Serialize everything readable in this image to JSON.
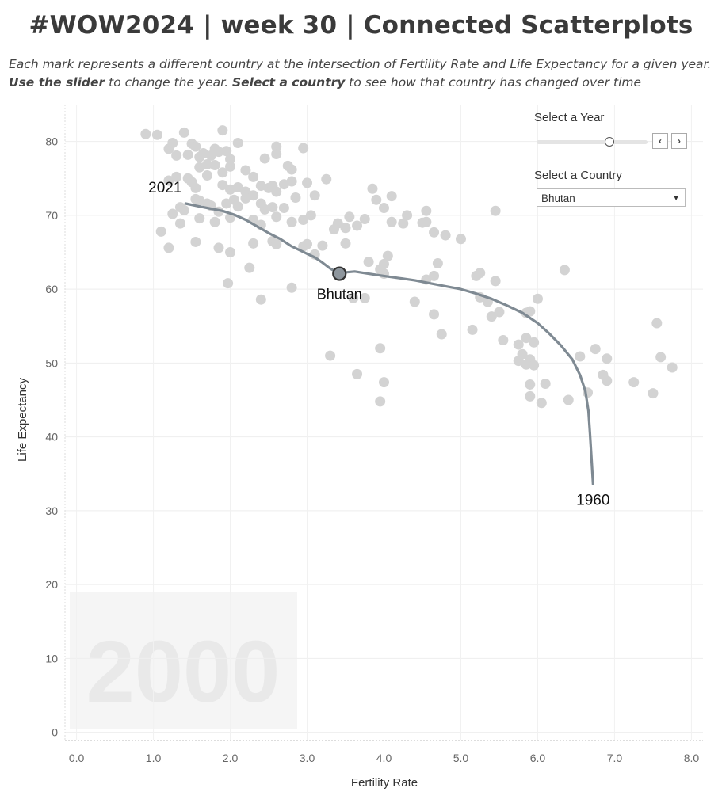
{
  "header": {
    "title": "#WOW2024 | week 30 | Connected Scatterplots",
    "subtitle_parts": [
      "Each mark represents a different country at the intersection of Fertility Rate and Life Expectancy for a given year. ",
      "Use the slider",
      " to change the year. ",
      "Select a country",
      " to see how that country has changed over time"
    ]
  },
  "controls": {
    "year_label": "Select a Year",
    "year_value": 2000,
    "year_range": [
      1960,
      2021
    ],
    "prev_label": "‹",
    "next_label": "›",
    "country_label": "Select a Country",
    "country_value": "Bhutan"
  },
  "chart_data": {
    "type": "scatter",
    "title": "",
    "xlabel": "Fertility Rate",
    "ylabel": "Life Expectancy",
    "xlim": [
      -0.15,
      8.15
    ],
    "ylim": [
      -1,
      85
    ],
    "xticks": [
      0,
      1,
      2,
      3,
      4,
      5,
      6,
      7,
      8
    ],
    "xtick_labels": [
      "0.0",
      "1.0",
      "2.0",
      "3.0",
      "4.0",
      "5.0",
      "6.0",
      "7.0",
      "8.0"
    ],
    "yticks": [
      0,
      10,
      20,
      30,
      40,
      50,
      60,
      70,
      80
    ],
    "ytick_labels": [
      "0",
      "10",
      "20",
      "30",
      "40",
      "50",
      "60",
      "70",
      "80"
    ],
    "year_watermark": "2000",
    "point_color": "#d3d3d3",
    "line_color": "#7f8a93",
    "highlight_color": "#8e969d",
    "highlight": {
      "name": "Bhutan",
      "x": 3.42,
      "y": 62.1
    },
    "annotations": [
      {
        "text": "2021",
        "x": 1.42,
        "y": 71.6
      },
      {
        "text": "1960",
        "x": 6.72,
        "y": 33.6
      }
    ],
    "points": [
      [
        0.9,
        81.0
      ],
      [
        1.05,
        80.9
      ],
      [
        1.2,
        79.0
      ],
      [
        1.25,
        79.8
      ],
      [
        1.3,
        78.1
      ],
      [
        1.4,
        81.2
      ],
      [
        1.45,
        78.2
      ],
      [
        1.5,
        79.7
      ],
      [
        1.55,
        79.3
      ],
      [
        1.6,
        77.9
      ],
      [
        1.65,
        78.4
      ],
      [
        1.7,
        76.9
      ],
      [
        1.75,
        78.1
      ],
      [
        1.8,
        79.0
      ],
      [
        1.85,
        78.6
      ],
      [
        1.9,
        81.5
      ],
      [
        1.95,
        78.7
      ],
      [
        2.0,
        77.6
      ],
      [
        2.1,
        79.8
      ],
      [
        1.6,
        76.5
      ],
      [
        1.7,
        75.4
      ],
      [
        1.8,
        76.8
      ],
      [
        1.9,
        75.8
      ],
      [
        2.0,
        76.6
      ],
      [
        2.2,
        76.1
      ],
      [
        2.3,
        75.2
      ],
      [
        2.45,
        77.7
      ],
      [
        2.6,
        79.3
      ],
      [
        2.6,
        78.3
      ],
      [
        2.75,
        76.7
      ],
      [
        2.8,
        76.2
      ],
      [
        2.95,
        79.1
      ],
      [
        1.45,
        75.0
      ],
      [
        1.55,
        73.7
      ],
      [
        1.9,
        74.1
      ],
      [
        2.0,
        73.5
      ],
      [
        2.1,
        73.8
      ],
      [
        2.2,
        73.2
      ],
      [
        2.3,
        72.7
      ],
      [
        2.4,
        74.0
      ],
      [
        2.5,
        73.7
      ],
      [
        2.55,
        74.0
      ],
      [
        2.6,
        73.2
      ],
      [
        2.7,
        74.2
      ],
      [
        2.8,
        74.6
      ],
      [
        2.85,
        72.4
      ],
      [
        3.0,
        74.4
      ],
      [
        3.1,
        72.7
      ],
      [
        3.25,
        74.9
      ],
      [
        1.2,
        74.7
      ],
      [
        1.3,
        75.2
      ],
      [
        1.5,
        74.5
      ],
      [
        1.55,
        72.2
      ],
      [
        1.6,
        72.0
      ],
      [
        1.7,
        71.6
      ],
      [
        1.75,
        71.3
      ],
      [
        1.85,
        70.5
      ],
      [
        1.95,
        71.6
      ],
      [
        2.05,
        72.1
      ],
      [
        2.1,
        71.2
      ],
      [
        2.2,
        72.3
      ],
      [
        2.4,
        71.6
      ],
      [
        2.55,
        71.1
      ],
      [
        2.7,
        71.0
      ],
      [
        1.25,
        70.2
      ],
      [
        1.35,
        71.1
      ],
      [
        1.4,
        70.7
      ],
      [
        1.6,
        69.6
      ],
      [
        1.8,
        69.1
      ],
      [
        2.0,
        69.7
      ],
      [
        2.3,
        69.4
      ],
      [
        2.4,
        68.7
      ],
      [
        2.6,
        69.8
      ],
      [
        2.8,
        69.1
      ],
      [
        2.95,
        69.4
      ],
      [
        3.05,
        70.0
      ],
      [
        1.35,
        68.9
      ],
      [
        1.1,
        67.8
      ],
      [
        1.2,
        65.6
      ],
      [
        1.55,
        66.4
      ],
      [
        1.85,
        65.6
      ],
      [
        2.0,
        65.0
      ],
      [
        2.3,
        66.2
      ],
      [
        2.55,
        66.5
      ],
      [
        2.6,
        66.1
      ],
      [
        2.95,
        65.8
      ],
      [
        3.0,
        66.1
      ],
      [
        3.2,
        65.9
      ],
      [
        3.1,
        64.7
      ],
      [
        3.35,
        68.1
      ],
      [
        3.5,
        68.3
      ],
      [
        3.55,
        69.8
      ],
      [
        3.65,
        68.6
      ],
      [
        3.75,
        69.5
      ],
      [
        3.85,
        73.6
      ],
      [
        3.9,
        72.1
      ],
      [
        4.0,
        71.0
      ],
      [
        4.1,
        72.6
      ],
      [
        4.1,
        69.1
      ],
      [
        4.25,
        68.9
      ],
      [
        4.3,
        70.0
      ],
      [
        4.5,
        69.0
      ],
      [
        4.55,
        70.6
      ],
      [
        4.55,
        69.1
      ],
      [
        4.65,
        67.7
      ],
      [
        4.8,
        67.3
      ],
      [
        5.0,
        66.8
      ],
      [
        5.45,
        70.6
      ],
      [
        2.8,
        60.2
      ],
      [
        1.97,
        60.8
      ],
      [
        2.25,
        62.9
      ],
      [
        2.4,
        58.6
      ],
      [
        3.6,
        58.8
      ],
      [
        3.75,
        58.8
      ],
      [
        3.8,
        63.7
      ],
      [
        3.95,
        62.7
      ],
      [
        4.0,
        63.4
      ],
      [
        4.05,
        64.5
      ],
      [
        4.0,
        62.1
      ],
      [
        4.4,
        58.3
      ],
      [
        4.55,
        61.3
      ],
      [
        4.65,
        61.8
      ],
      [
        4.7,
        63.5
      ],
      [
        4.65,
        56.6
      ],
      [
        4.75,
        53.9
      ],
      [
        5.15,
        54.5
      ],
      [
        5.2,
        61.8
      ],
      [
        5.25,
        62.2
      ],
      [
        5.25,
        58.9
      ],
      [
        5.35,
        58.3
      ],
      [
        5.4,
        56.3
      ],
      [
        5.45,
        61.1
      ],
      [
        5.5,
        56.9
      ],
      [
        5.55,
        53.1
      ],
      [
        5.75,
        52.5
      ],
      [
        5.8,
        51.2
      ],
      [
        5.85,
        53.4
      ],
      [
        5.9,
        57.0
      ],
      [
        5.85,
        56.8
      ],
      [
        5.95,
        52.8
      ],
      [
        5.9,
        50.5
      ],
      [
        5.95,
        49.7
      ],
      [
        6.0,
        58.7
      ],
      [
        6.35,
        62.6
      ],
      [
        5.75,
        50.3
      ],
      [
        5.85,
        49.8
      ],
      [
        5.9,
        47.1
      ],
      [
        5.9,
        45.5
      ],
      [
        6.05,
        44.6
      ],
      [
        6.1,
        47.2
      ],
      [
        6.4,
        45.0
      ],
      [
        6.55,
        50.9
      ],
      [
        6.65,
        46.0
      ],
      [
        6.75,
        51.9
      ],
      [
        6.85,
        48.4
      ],
      [
        6.9,
        47.6
      ],
      [
        6.9,
        50.6
      ],
      [
        7.25,
        47.4
      ],
      [
        7.5,
        45.9
      ],
      [
        7.55,
        55.4
      ],
      [
        7.6,
        50.8
      ],
      [
        7.75,
        49.4
      ],
      [
        3.3,
        51.0
      ],
      [
        3.65,
        48.5
      ],
      [
        3.95,
        52.0
      ],
      [
        4.0,
        47.4
      ],
      [
        3.95,
        44.8
      ],
      [
        3.4,
        68.9
      ],
      [
        3.5,
        66.2
      ],
      [
        2.45,
        70.8
      ]
    ],
    "trail": [
      [
        6.72,
        33.6
      ],
      [
        6.7,
        37.0
      ],
      [
        6.68,
        40.5
      ],
      [
        6.66,
        43.5
      ],
      [
        6.62,
        46.2
      ],
      [
        6.55,
        48.4
      ],
      [
        6.45,
        50.5
      ],
      [
        6.3,
        52.4
      ],
      [
        6.15,
        54.0
      ],
      [
        6.0,
        55.4
      ],
      [
        5.8,
        56.8
      ],
      [
        5.6,
        57.8
      ],
      [
        5.4,
        58.7
      ],
      [
        5.2,
        59.4
      ],
      [
        5.0,
        60.0
      ],
      [
        4.8,
        60.4
      ],
      [
        4.6,
        60.8
      ],
      [
        4.4,
        61.2
      ],
      [
        4.2,
        61.5
      ],
      [
        4.0,
        61.8
      ],
      [
        3.8,
        62.1
      ],
      [
        3.62,
        62.4
      ],
      [
        3.52,
        62.3
      ],
      [
        3.42,
        62.1
      ],
      [
        3.3,
        62.8
      ],
      [
        3.2,
        63.6
      ],
      [
        3.1,
        64.3
      ],
      [
        3.0,
        64.8
      ],
      [
        2.9,
        65.3
      ],
      [
        2.8,
        65.8
      ],
      [
        2.65,
        66.8
      ],
      [
        2.5,
        67.6
      ],
      [
        2.35,
        68.5
      ],
      [
        2.2,
        69.4
      ],
      [
        2.05,
        70.1
      ],
      [
        1.9,
        70.6
      ],
      [
        1.75,
        70.9
      ],
      [
        1.6,
        71.2
      ],
      [
        1.42,
        71.6
      ]
    ]
  }
}
